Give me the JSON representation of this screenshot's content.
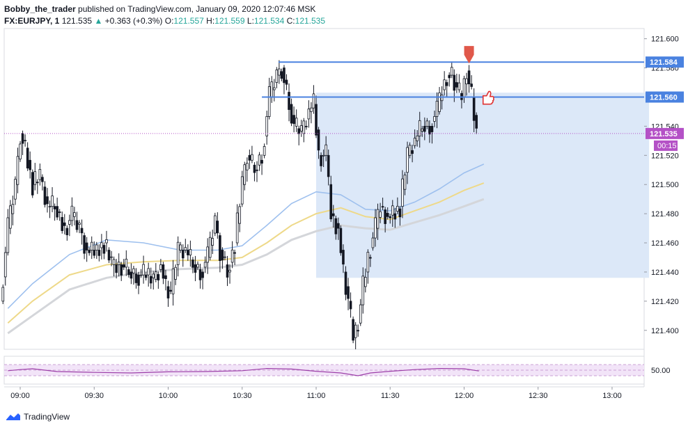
{
  "header": {
    "author": "Bobby_the_trader",
    "published_text": "published on TradingView.com, January 09, 2020 12:07:46 MSK",
    "symbol": "FX:EURJPY, 1",
    "last": "121.535",
    "change": "+0.363 (+0.3%)",
    "o_label": "O:",
    "o": "121.557",
    "h_label": "H:",
    "h": "121.559",
    "l_label": "L:",
    "l": "121.534",
    "c_label": "C:",
    "c": "121.535"
  },
  "brand": {
    "name": "TradingView"
  },
  "colors": {
    "bar": "#131722",
    "hline": "#4a82e0",
    "zone": "#dce8f8",
    "ma_fast": "#9ec0ee",
    "ma_mid": "#eed989",
    "ma_slow": "#d4d6da",
    "rsi": "#9c3ea8",
    "rsi_band": "#f2e4f8",
    "last_price": "#b451c6",
    "signal_arrow": "#e0584a",
    "thumb": "#e03030"
  },
  "icons": {
    "signal": "arrow-down-icon",
    "thumb": "thumbs-up-icon",
    "logo": "tradingview-logo-icon"
  },
  "chart_data": {
    "type": "candlestick",
    "x_ticks": [
      "09:00",
      "09:30",
      "10:00",
      "10:30",
      "11:00",
      "11:30",
      "12:00",
      "12:30",
      "13:00"
    ],
    "y_ticks": [
      "121.600",
      "121.580",
      "121.540",
      "121.520",
      "121.500",
      "121.480",
      "121.460",
      "121.440",
      "121.420",
      "121.400"
    ],
    "ylim": [
      121.387,
      121.607
    ],
    "price_labels": {
      "upper_level": "121.584",
      "lower_level": "121.560",
      "last": "121.535",
      "countdown": "00:15"
    },
    "horizontal_levels": [
      121.584,
      121.56
    ],
    "zone": {
      "from_time": "11:00",
      "to_time": "13:15",
      "top": 121.563,
      "bottom": 121.436
    },
    "last_price": 121.535,
    "rsi": {
      "tick": "50.00",
      "upper": 70,
      "lower": 30
    },
    "series": [
      {
        "name": "price",
        "points": [
          [
            "08:53",
            121.42
          ],
          [
            "08:56",
            121.47
          ],
          [
            "08:59",
            121.5
          ],
          [
            "09:01",
            121.535
          ],
          [
            "09:03",
            121.525
          ],
          [
            "09:06",
            121.5
          ],
          [
            "09:09",
            121.505
          ],
          [
            "09:12",
            121.485
          ],
          [
            "09:15",
            121.485
          ],
          [
            "09:19",
            121.47
          ],
          [
            "09:22",
            121.478
          ],
          [
            "09:25",
            121.47
          ],
          [
            "09:28",
            121.455
          ],
          [
            "09:32",
            121.455
          ],
          [
            "09:35",
            121.46
          ],
          [
            "09:38",
            121.445
          ],
          [
            "09:42",
            121.445
          ],
          [
            "09:45",
            121.44
          ],
          [
            "09:48",
            121.438
          ],
          [
            "09:52",
            121.438
          ],
          [
            "09:55",
            121.435
          ],
          [
            "09:58",
            121.445
          ],
          [
            "10:00",
            121.43
          ],
          [
            "10:02",
            121.425
          ],
          [
            "10:05",
            121.455
          ],
          [
            "10:08",
            121.455
          ],
          [
            "10:11",
            121.445
          ],
          [
            "10:14",
            121.44
          ],
          [
            "10:17",
            121.45
          ],
          [
            "10:20",
            121.475
          ],
          [
            "10:22",
            121.455
          ],
          [
            "10:25",
            121.44
          ],
          [
            "10:28",
            121.46
          ],
          [
            "10:31",
            121.5
          ],
          [
            "10:33",
            121.52
          ],
          [
            "10:36",
            121.51
          ],
          [
            "10:39",
            121.52
          ],
          [
            "10:42",
            121.56
          ],
          [
            "10:45",
            121.575
          ],
          [
            "10:47",
            121.58
          ],
          [
            "10:50",
            121.555
          ],
          [
            "10:52",
            121.54
          ],
          [
            "10:55",
            121.535
          ],
          [
            "10:58",
            121.55
          ],
          [
            "11:00",
            121.555
          ],
          [
            "11:02",
            121.52
          ],
          [
            "11:05",
            121.52
          ],
          [
            "11:07",
            121.48
          ],
          [
            "11:10",
            121.47
          ],
          [
            "11:12",
            121.44
          ],
          [
            "11:14",
            121.42
          ],
          [
            "11:16",
            121.395
          ],
          [
            "11:18",
            121.405
          ],
          [
            "11:20",
            121.43
          ],
          [
            "11:22",
            121.45
          ],
          [
            "11:25",
            121.47
          ],
          [
            "11:27",
            121.485
          ],
          [
            "11:30",
            121.478
          ],
          [
            "11:32",
            121.48
          ],
          [
            "11:35",
            121.485
          ],
          [
            "11:38",
            121.52
          ],
          [
            "11:41",
            121.53
          ],
          [
            "11:44",
            121.54
          ],
          [
            "11:47",
            121.54
          ],
          [
            "11:50",
            121.55
          ],
          [
            "11:52",
            121.565
          ],
          [
            "11:54",
            121.575
          ],
          [
            "11:56",
            121.575
          ],
          [
            "11:58",
            121.565
          ],
          [
            "12:00",
            121.56
          ],
          [
            "12:02",
            121.578
          ],
          [
            "12:04",
            121.56
          ],
          [
            "12:06",
            121.535
          ]
        ]
      },
      {
        "name": "ma_fast",
        "points": [
          [
            "08:55",
            121.415
          ],
          [
            "09:05",
            121.432
          ],
          [
            "09:20",
            121.452
          ],
          [
            "09:35",
            121.462
          ],
          [
            "09:50",
            121.46
          ],
          [
            "10:05",
            121.455
          ],
          [
            "10:20",
            121.455
          ],
          [
            "10:30",
            121.458
          ],
          [
            "10:40",
            121.472
          ],
          [
            "10:50",
            121.487
          ],
          [
            "11:00",
            121.495
          ],
          [
            "11:10",
            121.493
          ],
          [
            "11:20",
            121.483
          ],
          [
            "11:30",
            121.482
          ],
          [
            "11:40",
            121.488
          ],
          [
            "11:50",
            121.497
          ],
          [
            "12:00",
            121.508
          ],
          [
            "12:08",
            121.514
          ]
        ]
      },
      {
        "name": "ma_mid",
        "points": [
          [
            "08:55",
            121.405
          ],
          [
            "09:05",
            121.42
          ],
          [
            "09:20",
            121.438
          ],
          [
            "09:35",
            121.445
          ],
          [
            "09:50",
            121.447
          ],
          [
            "10:05",
            121.448
          ],
          [
            "10:20",
            121.448
          ],
          [
            "10:30",
            121.45
          ],
          [
            "10:40",
            121.46
          ],
          [
            "10:50",
            121.472
          ],
          [
            "11:00",
            121.48
          ],
          [
            "11:10",
            121.484
          ],
          [
            "11:20",
            121.478
          ],
          [
            "11:30",
            121.476
          ],
          [
            "11:40",
            121.482
          ],
          [
            "11:50",
            121.488
          ],
          [
            "12:00",
            121.496
          ],
          [
            "12:08",
            121.501
          ]
        ]
      },
      {
        "name": "ma_slow",
        "points": [
          [
            "08:55",
            121.398
          ],
          [
            "09:05",
            121.41
          ],
          [
            "09:20",
            121.428
          ],
          [
            "09:35",
            121.436
          ],
          [
            "09:50",
            121.44
          ],
          [
            "10:05",
            121.442
          ],
          [
            "10:20",
            121.443
          ],
          [
            "10:30",
            121.445
          ],
          [
            "10:40",
            121.452
          ],
          [
            "10:50",
            121.462
          ],
          [
            "11:00",
            121.468
          ],
          [
            "11:10",
            121.472
          ],
          [
            "11:20",
            121.47
          ],
          [
            "11:30",
            121.469
          ],
          [
            "11:40",
            121.474
          ],
          [
            "11:50",
            121.479
          ],
          [
            "12:00",
            121.485
          ],
          [
            "12:08",
            121.49
          ]
        ]
      },
      {
        "name": "rsi",
        "points": [
          [
            "08:55",
            48
          ],
          [
            "09:00",
            52
          ],
          [
            "09:05",
            55
          ],
          [
            "09:15",
            45
          ],
          [
            "09:30",
            42
          ],
          [
            "09:45",
            40
          ],
          [
            "10:00",
            44
          ],
          [
            "10:15",
            45
          ],
          [
            "10:30",
            48
          ],
          [
            "10:40",
            56
          ],
          [
            "10:50",
            54
          ],
          [
            "11:00",
            46
          ],
          [
            "11:10",
            40
          ],
          [
            "11:17",
            30
          ],
          [
            "11:22",
            40
          ],
          [
            "11:30",
            46
          ],
          [
            "11:40",
            52
          ],
          [
            "11:50",
            56
          ],
          [
            "12:00",
            55
          ],
          [
            "12:06",
            47
          ]
        ]
      }
    ]
  }
}
